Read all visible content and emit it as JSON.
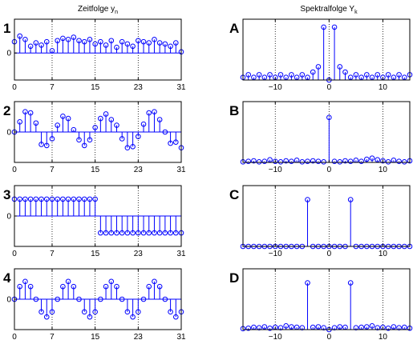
{
  "left_title": "Zeitfolge y",
  "left_title_sub": "n",
  "right_title": "Spektralfolge Y",
  "right_title_sub": "k",
  "colors": {
    "stem": "#0000ff",
    "axis": "#000000",
    "grid": "#000000"
  },
  "chart_data": [
    {
      "id": "time-1",
      "type": "stem",
      "label": "1",
      "x": [
        0,
        1,
        2,
        3,
        4,
        5,
        6,
        7,
        8,
        9,
        10,
        11,
        12,
        13,
        14,
        15,
        16,
        17,
        18,
        19,
        20,
        21,
        22,
        23,
        24,
        25,
        26,
        27,
        28,
        29,
        30,
        31
      ],
      "values": [
        0.5,
        0.75,
        0.6,
        0.3,
        0.45,
        0.35,
        0.5,
        0.1,
        0.55,
        0.65,
        0.6,
        0.7,
        0.55,
        0.5,
        0.6,
        0.4,
        0.5,
        0.35,
        0.55,
        0.25,
        0.5,
        0.4,
        0.3,
        0.55,
        0.5,
        0.45,
        0.6,
        0.45,
        0.4,
        0.3,
        0.45,
        0.05
      ],
      "xticks": [
        "0",
        "7",
        "15",
        "23",
        "31"
      ],
      "xtick_values": [
        0,
        7,
        15,
        23,
        31
      ],
      "yticks": [
        "0"
      ],
      "ytick_values": [
        0
      ],
      "xlim": [
        0,
        31
      ],
      "ylim": [
        -1.2,
        1.5
      ],
      "grid": "vertical-dotted"
    },
    {
      "id": "time-2",
      "type": "stem",
      "label": "2",
      "x": [
        0,
        1,
        2,
        3,
        4,
        5,
        6,
        7,
        8,
        9,
        10,
        11,
        12,
        13,
        14,
        15,
        16,
        17,
        18,
        19,
        20,
        21,
        22,
        23,
        24,
        25,
        26,
        27,
        28,
        29,
        30,
        31
      ],
      "values": [
        0,
        0.45,
        0.9,
        0.85,
        0.4,
        -0.55,
        -0.6,
        -0.3,
        0.3,
        0.7,
        0.6,
        0.1,
        -0.35,
        -0.6,
        -0.35,
        0.2,
        0.6,
        0.8,
        0.55,
        0.3,
        -0.3,
        -0.7,
        -0.65,
        -0.2,
        0.35,
        0.85,
        0.9,
        0.55,
        0,
        -0.5,
        -0.45,
        -0.7
      ],
      "xticks": [
        "0",
        "7",
        "15",
        "23",
        "31"
      ],
      "xtick_values": [
        0,
        7,
        15,
        23,
        31
      ],
      "yticks": [
        "0"
      ],
      "ytick_values": [
        0
      ],
      "xlim": [
        0,
        31
      ],
      "ylim": [
        -1.35,
        1.35
      ],
      "grid": "vertical-dotted"
    },
    {
      "id": "time-3",
      "type": "stem",
      "label": "3",
      "x": [
        0,
        1,
        2,
        3,
        4,
        5,
        6,
        7,
        8,
        9,
        10,
        11,
        12,
        13,
        14,
        15,
        16,
        17,
        18,
        19,
        20,
        21,
        22,
        23,
        24,
        25,
        26,
        27,
        28,
        29,
        30,
        31
      ],
      "values": [
        1,
        1,
        1,
        1,
        1,
        1,
        1,
        1,
        1,
        1,
        1,
        1,
        1,
        1,
        1,
        1,
        -1,
        -1,
        -1,
        -1,
        -1,
        -1,
        -1,
        -1,
        -1,
        -1,
        -1,
        -1,
        -1,
        -1,
        -1,
        -1
      ],
      "xticks": [
        "0",
        "7",
        "15",
        "23",
        "31"
      ],
      "xtick_values": [
        0,
        7,
        15,
        23,
        31
      ],
      "yticks": [
        "0"
      ],
      "ytick_values": [
        0
      ],
      "xlim": [
        0,
        31
      ],
      "ylim": [
        -1.8,
        1.8
      ],
      "grid": "vertical-dotted"
    },
    {
      "id": "time-4",
      "type": "stem",
      "label": "4",
      "x": [
        0,
        1,
        2,
        3,
        4,
        5,
        6,
        7,
        8,
        9,
        10,
        11,
        12,
        13,
        14,
        15,
        16,
        17,
        18,
        19,
        20,
        21,
        22,
        23,
        24,
        25,
        26,
        27,
        28,
        29,
        30,
        31
      ],
      "values": [
        0,
        0.5,
        0.7,
        0.5,
        0,
        -0.5,
        -0.7,
        -0.5,
        0,
        0.5,
        0.7,
        0.5,
        0,
        -0.5,
        -0.7,
        -0.5,
        0,
        0.5,
        0.7,
        0.5,
        0,
        -0.5,
        -0.7,
        -0.5,
        0,
        0.5,
        0.7,
        0.5,
        0,
        -0.5,
        -0.7,
        -0.5
      ],
      "xticks": [
        "0",
        "7",
        "15",
        "23",
        "31"
      ],
      "xtick_values": [
        0,
        7,
        15,
        23,
        31
      ],
      "yticks": [
        "0"
      ],
      "ytick_values": [
        0
      ],
      "xlim": [
        0,
        31
      ],
      "ylim": [
        -1.2,
        1.2
      ],
      "grid": "vertical-dotted"
    },
    {
      "id": "spec-A",
      "type": "stem",
      "label": "A",
      "x": [
        -16,
        -15,
        -14,
        -13,
        -12,
        -11,
        -10,
        -9,
        -8,
        -7,
        -6,
        -5,
        -4,
        -3,
        -2,
        -1,
        0,
        1,
        2,
        3,
        4,
        5,
        6,
        7,
        8,
        9,
        10,
        11,
        12,
        13,
        14,
        15
      ],
      "values": [
        0.05,
        0.1,
        0.05,
        0.1,
        0.05,
        0.1,
        0.05,
        0.1,
        0.05,
        0.1,
        0.05,
        0.1,
        0.05,
        0.15,
        0.25,
        1.0,
        0,
        1.0,
        0.25,
        0.15,
        0.05,
        0.1,
        0.05,
        0.1,
        0.05,
        0.1,
        0.05,
        0.1,
        0.05,
        0.1,
        0.05,
        0.1
      ],
      "xticks": [
        "−10",
        "0",
        "10"
      ],
      "xtick_values": [
        -10,
        0,
        10
      ],
      "yticks": [],
      "ytick_values": [],
      "xlim": [
        -16,
        15
      ],
      "ylim": [
        0,
        1.15
      ],
      "grid": "vertical-dotted"
    },
    {
      "id": "spec-B",
      "type": "stem",
      "label": "B",
      "x": [
        -16,
        -15,
        -14,
        -13,
        -12,
        -11,
        -10,
        -9,
        -8,
        -7,
        -6,
        -5,
        -4,
        -3,
        -2,
        -1,
        0,
        1,
        2,
        3,
        4,
        5,
        6,
        7,
        8,
        9,
        10,
        11,
        12,
        13,
        14,
        15
      ],
      "values": [
        0.01,
        0.02,
        0.03,
        0.01,
        0.02,
        0.05,
        0.02,
        0.01,
        0.03,
        0.02,
        0.04,
        0.01,
        0.02,
        0.03,
        0.02,
        0.01,
        0.85,
        0.02,
        0.01,
        0.03,
        0.02,
        0.04,
        0.02,
        0.06,
        0.08,
        0.05,
        0.03,
        0.01,
        0.04,
        0.02,
        0.01,
        0.03
      ],
      "xticks": [
        "−10",
        "0",
        "10"
      ],
      "xtick_values": [
        -10,
        0,
        10
      ],
      "yticks": [],
      "ytick_values": [],
      "xlim": [
        -16,
        15
      ],
      "ylim": [
        0,
        1.15
      ],
      "grid": "vertical-dotted"
    },
    {
      "id": "spec-C",
      "type": "stem",
      "label": "C",
      "x": [
        -16,
        -15,
        -14,
        -13,
        -12,
        -11,
        -10,
        -9,
        -8,
        -7,
        -6,
        -5,
        -4,
        -3,
        -2,
        -1,
        0,
        1,
        2,
        3,
        4,
        5,
        6,
        7,
        8,
        9,
        10,
        11,
        12,
        13,
        14,
        15
      ],
      "values": [
        0,
        0,
        0,
        0,
        0,
        0,
        0,
        0,
        0,
        0,
        0,
        0,
        1.0,
        0,
        0,
        0,
        0,
        0,
        0,
        0,
        1.0,
        0,
        0,
        0,
        0,
        0,
        0,
        0,
        0,
        0,
        0,
        0
      ],
      "xticks": [
        "−10",
        "0",
        "10"
      ],
      "xtick_values": [
        -10,
        0,
        10
      ],
      "yticks": [],
      "ytick_values": [],
      "xlim": [
        -16,
        15
      ],
      "ylim": [
        0,
        1.3
      ],
      "grid": "vertical-dotted"
    },
    {
      "id": "spec-D",
      "type": "stem",
      "label": "D",
      "x": [
        -16,
        -15,
        -14,
        -13,
        -12,
        -11,
        -10,
        -9,
        -8,
        -7,
        -6,
        -5,
        -4,
        -3,
        -2,
        -1,
        0,
        1,
        2,
        3,
        4,
        5,
        6,
        7,
        8,
        9,
        10,
        11,
        12,
        13,
        14,
        15
      ],
      "values": [
        0.02,
        0.03,
        0.05,
        0.04,
        0.06,
        0.03,
        0.05,
        0.04,
        0.08,
        0.06,
        0.05,
        0.04,
        1.0,
        0.05,
        0.06,
        0.04,
        0,
        0.04,
        0.06,
        0.05,
        1.0,
        0.04,
        0.05,
        0.06,
        0.08,
        0.04,
        0.05,
        0.03,
        0.06,
        0.04,
        0.05,
        0.03
      ],
      "xticks": [
        "−10",
        "0",
        "10"
      ],
      "xtick_values": [
        -10,
        0,
        10
      ],
      "yticks": [],
      "ytick_values": [],
      "xlim": [
        -16,
        15
      ],
      "ylim": [
        0,
        1.3
      ],
      "grid": "vertical-dotted"
    }
  ]
}
